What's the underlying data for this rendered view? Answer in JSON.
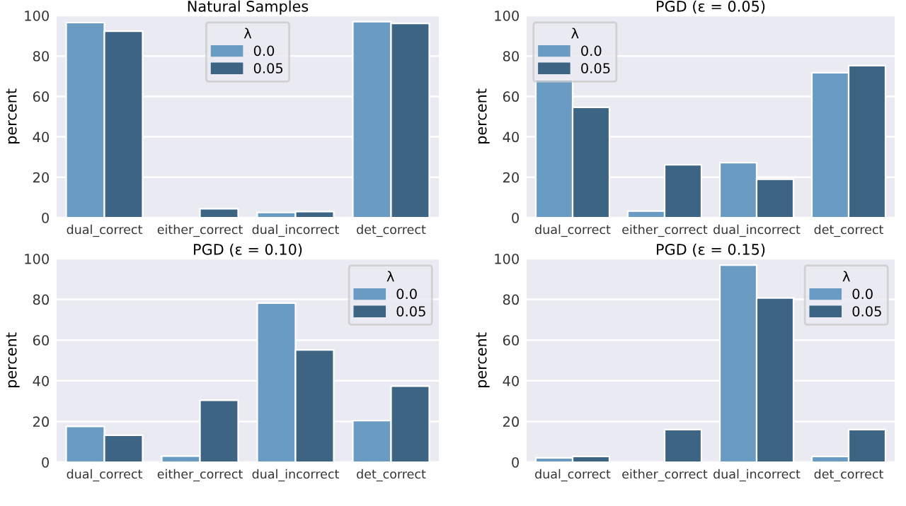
{
  "chart_data": [
    {
      "type": "bar",
      "title": "Natural Samples",
      "ylabel": "percent",
      "categories": [
        "dual_correct",
        "either_correct",
        "dual_incorrect",
        "det_correct"
      ],
      "legend_title": "λ",
      "legend": "top center",
      "grid": "y",
      "ylim": [
        0,
        100
      ],
      "yticks": [
        0,
        20,
        40,
        60,
        80,
        100
      ],
      "series": [
        {
          "name": "0.0",
          "color": "#6a9bc3",
          "values": [
            96.5,
            null,
            2.6,
            97.0
          ]
        },
        {
          "name": "0.05",
          "color": "#3d6483",
          "values": [
            92.3,
            4.4,
            3.0,
            96.1
          ]
        }
      ]
    },
    {
      "type": "bar",
      "title": "PGD (ε = 0.05)",
      "ylabel": "percent",
      "categories": [
        "dual_correct",
        "either_correct",
        "dual_incorrect",
        "det_correct"
      ],
      "legend_title": "λ",
      "legend": "top left",
      "grid": "y",
      "ylim": [
        0,
        100
      ],
      "yticks": [
        0,
        20,
        40,
        60,
        80,
        100
      ],
      "series": [
        {
          "name": "0.0",
          "color": "#6a9bc3",
          "values": [
            68.4,
            3.3,
            27.2,
            71.7
          ]
        },
        {
          "name": "0.05",
          "color": "#3d6483",
          "values": [
            54.6,
            26.2,
            19.0,
            75.2
          ]
        }
      ]
    },
    {
      "type": "bar",
      "title": "PGD (ε = 0.10)",
      "ylabel": "percent",
      "categories": [
        "dual_correct",
        "either_correct",
        "dual_incorrect",
        "det_correct"
      ],
      "legend_title": "λ",
      "legend": "top right",
      "grid": "y",
      "ylim": [
        0,
        100
      ],
      "yticks": [
        0,
        20,
        40,
        60,
        80,
        100
      ],
      "series": [
        {
          "name": "0.0",
          "color": "#6a9bc3",
          "values": [
            17.6,
            3.0,
            78.2,
            20.4
          ]
        },
        {
          "name": "0.05",
          "color": "#3d6483",
          "values": [
            13.2,
            30.4,
            55.2,
            37.4
          ]
        }
      ]
    },
    {
      "type": "bar",
      "title": "PGD (ε = 0.15)",
      "ylabel": "percent",
      "categories": [
        "dual_correct",
        "either_correct",
        "dual_incorrect",
        "det_correct"
      ],
      "legend_title": "λ",
      "legend": "top right",
      "grid": "y",
      "ylim": [
        0,
        100
      ],
      "yticks": [
        0,
        20,
        40,
        60,
        80,
        100
      ],
      "series": [
        {
          "name": "0.0",
          "color": "#6a9bc3",
          "values": [
            2.1,
            null,
            96.8,
            2.8
          ]
        },
        {
          "name": "0.05",
          "color": "#3d6483",
          "values": [
            2.8,
            16.0,
            80.7,
            16.0
          ]
        }
      ]
    }
  ]
}
